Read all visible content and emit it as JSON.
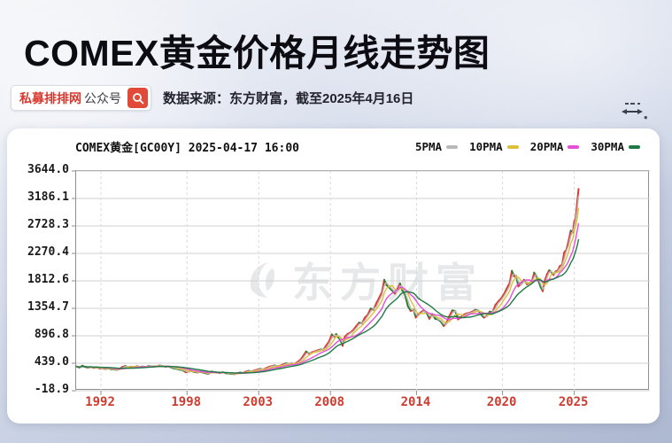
{
  "header": {
    "title": "COMEX黄金价格月线走势图",
    "badge": {
      "brand": "私募排排网",
      "type": "公众号"
    },
    "source": "数据来源：东方财富，截至2025年4月16日",
    "accent_red": "#d6382e"
  },
  "chart_data": {
    "type": "line",
    "title": "COMEX黄金[GC00Y] 2025-04-17 16:00",
    "watermark": "东方财富",
    "grid": true,
    "legend_position": "top-right",
    "x_tick_labels": [
      "1992",
      "1998",
      "2003",
      "2008",
      "2014",
      "2020",
      "2025"
    ],
    "x_tick_years": [
      1992,
      1998,
      2003,
      2008,
      2014,
      2020,
      2025
    ],
    "y_tick_labels": [
      "3644.0",
      "3186.1",
      "2728.3",
      "2270.4",
      "1812.6",
      "1354.7",
      "896.8",
      "439.0",
      "-18.9"
    ],
    "y_ticks": [
      3644.0,
      3186.1,
      2728.3,
      2270.4,
      1812.6,
      1354.7,
      896.8,
      439.0,
      -18.9
    ],
    "x_range": [
      1990.27,
      2030.27
    ],
    "y_range": [
      -18.9,
      3644.0
    ],
    "up_color": "#e0392e",
    "down_color": "#2f7d33",
    "grid_color": "#d0d0d0",
    "x_label_color": "#cf3b2f",
    "price": [
      [
        1990.3,
        385
      ],
      [
        1990.5,
        368
      ],
      [
        1990.7,
        398
      ],
      [
        1990.9,
        378
      ],
      [
        1991.1,
        366
      ],
      [
        1991.3,
        375
      ],
      [
        1991.5,
        362
      ],
      [
        1991.7,
        370
      ],
      [
        1991.9,
        355
      ],
      [
        1992.1,
        358
      ],
      [
        1992.3,
        344
      ],
      [
        1992.5,
        350
      ],
      [
        1992.7,
        340
      ],
      [
        1992.9,
        335
      ],
      [
        1993.1,
        330
      ],
      [
        1993.3,
        342
      ],
      [
        1993.5,
        378
      ],
      [
        1993.7,
        392
      ],
      [
        1993.9,
        372
      ],
      [
        1994.1,
        382
      ],
      [
        1994.3,
        377
      ],
      [
        1994.5,
        388
      ],
      [
        1994.7,
        380
      ],
      [
        1994.9,
        384
      ],
      [
        1995.1,
        376
      ],
      [
        1995.3,
        390
      ],
      [
        1995.5,
        386
      ],
      [
        1995.7,
        384
      ],
      [
        1995.9,
        388
      ],
      [
        1996.1,
        400
      ],
      [
        1996.3,
        392
      ],
      [
        1996.5,
        382
      ],
      [
        1996.7,
        386
      ],
      [
        1996.9,
        369
      ],
      [
        1997.1,
        352
      ],
      [
        1997.3,
        345
      ],
      [
        1997.5,
        331
      ],
      [
        1997.7,
        324
      ],
      [
        1997.9,
        290
      ],
      [
        1998.1,
        298
      ],
      [
        1998.3,
        308
      ],
      [
        1998.5,
        294
      ],
      [
        1998.7,
        286
      ],
      [
        1998.9,
        294
      ],
      [
        1999.1,
        286
      ],
      [
        1999.3,
        272
      ],
      [
        1999.5,
        262
      ],
      [
        1999.7,
        300
      ],
      [
        1999.9,
        290
      ],
      [
        2000.1,
        284
      ],
      [
        2000.3,
        276
      ],
      [
        2000.5,
        288
      ],
      [
        2000.7,
        274
      ],
      [
        2000.9,
        269
      ],
      [
        2001.1,
        262
      ],
      [
        2001.3,
        257
      ],
      [
        2001.5,
        271
      ],
      [
        2001.7,
        284
      ],
      [
        2001.9,
        277
      ],
      [
        2002.1,
        297
      ],
      [
        2002.3,
        312
      ],
      [
        2002.5,
        304
      ],
      [
        2002.7,
        318
      ],
      [
        2002.9,
        332
      ],
      [
        2003.1,
        346
      ],
      [
        2003.3,
        336
      ],
      [
        2003.5,
        356
      ],
      [
        2003.7,
        378
      ],
      [
        2003.9,
        390
      ],
      [
        2004.1,
        402
      ],
      [
        2004.3,
        388
      ],
      [
        2004.5,
        396
      ],
      [
        2004.7,
        420
      ],
      [
        2004.9,
        438
      ],
      [
        2005.1,
        428
      ],
      [
        2005.3,
        436
      ],
      [
        2005.5,
        430
      ],
      [
        2005.7,
        458
      ],
      [
        2005.9,
        495
      ],
      [
        2006.1,
        560
      ],
      [
        2006.3,
        635
      ],
      [
        2006.5,
        600
      ],
      [
        2006.7,
        622
      ],
      [
        2006.9,
        636
      ],
      [
        2007.1,
        655
      ],
      [
        2007.3,
        670
      ],
      [
        2007.5,
        662
      ],
      [
        2007.7,
        735
      ],
      [
        2007.9,
        800
      ],
      [
        2008.1,
        920
      ],
      [
        2008.25,
        880
      ],
      [
        2008.4,
        925
      ],
      [
        2008.55,
        870
      ],
      [
        2008.7,
        820
      ],
      [
        2008.85,
        730
      ],
      [
        2009.0,
        880
      ],
      [
        2009.2,
        930
      ],
      [
        2009.4,
        950
      ],
      [
        2009.6,
        995
      ],
      [
        2009.8,
        1060
      ],
      [
        2010.0,
        1115
      ],
      [
        2010.2,
        1105
      ],
      [
        2010.4,
        1200
      ],
      [
        2010.6,
        1245
      ],
      [
        2010.8,
        1350
      ],
      [
        2011.0,
        1330
      ],
      [
        2011.2,
        1440
      ],
      [
        2011.4,
        1530
      ],
      [
        2011.6,
        1630
      ],
      [
        2011.75,
        1830
      ],
      [
        2011.9,
        1745
      ],
      [
        2012.1,
        1700
      ],
      [
        2012.3,
        1650
      ],
      [
        2012.5,
        1600
      ],
      [
        2012.7,
        1690
      ],
      [
        2012.85,
        1770
      ],
      [
        2013.0,
        1660
      ],
      [
        2013.2,
        1580
      ],
      [
        2013.4,
        1390
      ],
      [
        2013.6,
        1310
      ],
      [
        2013.8,
        1330
      ],
      [
        2013.95,
        1200
      ],
      [
        2014.1,
        1250
      ],
      [
        2014.3,
        1290
      ],
      [
        2014.5,
        1320
      ],
      [
        2014.7,
        1280
      ],
      [
        2014.9,
        1180
      ],
      [
        2015.1,
        1260
      ],
      [
        2015.3,
        1180
      ],
      [
        2015.5,
        1170
      ],
      [
        2015.7,
        1130
      ],
      [
        2015.9,
        1060
      ],
      [
        2016.1,
        1120
      ],
      [
        2016.3,
        1230
      ],
      [
        2016.5,
        1320
      ],
      [
        2016.7,
        1310
      ],
      [
        2016.9,
        1170
      ],
      [
        2017.1,
        1210
      ],
      [
        2017.3,
        1250
      ],
      [
        2017.5,
        1270
      ],
      [
        2017.7,
        1280
      ],
      [
        2017.9,
        1300
      ],
      [
        2018.1,
        1330
      ],
      [
        2018.3,
        1320
      ],
      [
        2018.5,
        1250
      ],
      [
        2018.7,
        1200
      ],
      [
        2018.9,
        1230
      ],
      [
        2019.1,
        1300
      ],
      [
        2019.3,
        1290
      ],
      [
        2019.5,
        1410
      ],
      [
        2019.7,
        1470
      ],
      [
        2019.9,
        1520
      ],
      [
        2020.1,
        1590
      ],
      [
        2020.3,
        1690
      ],
      [
        2020.5,
        1780
      ],
      [
        2020.65,
        1980
      ],
      [
        2020.8,
        1890
      ],
      [
        2020.95,
        1895
      ],
      [
        2021.1,
        1720
      ],
      [
        2021.3,
        1770
      ],
      [
        2021.5,
        1830
      ],
      [
        2021.7,
        1755
      ],
      [
        2021.9,
        1780
      ],
      [
        2022.05,
        1800
      ],
      [
        2022.2,
        1950
      ],
      [
        2022.35,
        1890
      ],
      [
        2022.5,
        1810
      ],
      [
        2022.65,
        1710
      ],
      [
        2022.8,
        1640
      ],
      [
        2022.95,
        1820
      ],
      [
        2023.1,
        1920
      ],
      [
        2023.25,
        1990
      ],
      [
        2023.4,
        1960
      ],
      [
        2023.55,
        1910
      ],
      [
        2023.7,
        1970
      ],
      [
        2023.85,
        1985
      ],
      [
        2024.0,
        2060
      ],
      [
        2024.15,
        2080
      ],
      [
        2024.3,
        2290
      ],
      [
        2024.45,
        2330
      ],
      [
        2024.6,
        2470
      ],
      [
        2024.75,
        2650
      ],
      [
        2024.9,
        2620
      ],
      [
        2025.0,
        2800
      ],
      [
        2025.1,
        2860
      ],
      [
        2025.2,
        3120
      ],
      [
        2025.3,
        3344
      ]
    ],
    "ma_series": [
      {
        "label": "5PMA",
        "color": "#b9b9b9",
        "window": 2
      },
      {
        "label": "10PMA",
        "color": "#dcc03a",
        "window": 4
      },
      {
        "label": "20PMA",
        "color": "#e24fd8",
        "window": 8
      },
      {
        "label": "30PMA",
        "color": "#1e7a44",
        "window": 13
      }
    ]
  }
}
